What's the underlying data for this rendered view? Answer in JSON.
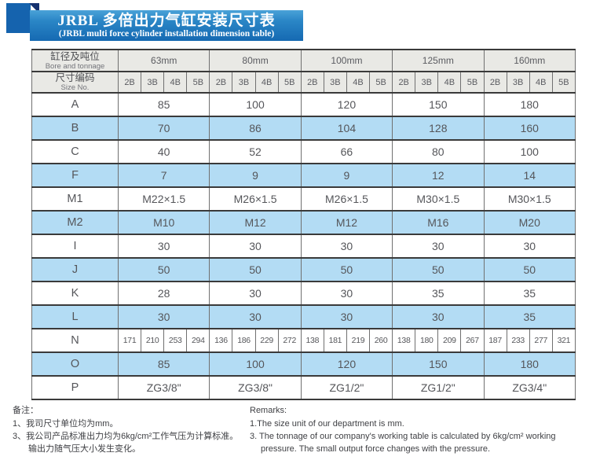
{
  "banner": {
    "title_zh": "JRBL 多倍出力气缸安装尺寸表",
    "title_en": "(JRBL multi force cylinder installation dimension table)"
  },
  "table": {
    "header": {
      "bore_zh": "缸径及吨位",
      "bore_en": "Bore and tonnage",
      "size_zh": "尺寸编码",
      "size_en": "Size No."
    },
    "groups": [
      "63mm",
      "80mm",
      "100mm",
      "125mm",
      "160mm"
    ],
    "subcols": [
      "2B",
      "3B",
      "4B",
      "5B"
    ],
    "rows": [
      {
        "label": "A",
        "values": [
          "85",
          "100",
          "120",
          "150",
          "180"
        ]
      },
      {
        "label": "B",
        "values": [
          "70",
          "86",
          "104",
          "128",
          "160"
        ]
      },
      {
        "label": "C",
        "values": [
          "40",
          "52",
          "66",
          "80",
          "100"
        ]
      },
      {
        "label": "F",
        "values": [
          "7",
          "9",
          "9",
          "12",
          "14"
        ]
      },
      {
        "label": "M1",
        "values": [
          "M22×1.5",
          "M26×1.5",
          "M26×1.5",
          "M30×1.5",
          "M30×1.5"
        ]
      },
      {
        "label": "M2",
        "values": [
          "M10",
          "M12",
          "M12",
          "M16",
          "M20"
        ]
      },
      {
        "label": "I",
        "values": [
          "30",
          "30",
          "30",
          "30",
          "30"
        ]
      },
      {
        "label": "J",
        "values": [
          "50",
          "50",
          "50",
          "50",
          "50"
        ]
      },
      {
        "label": "K",
        "values": [
          "28",
          "30",
          "30",
          "35",
          "35"
        ]
      },
      {
        "label": "L",
        "values": [
          "30",
          "30",
          "30",
          "30",
          "35"
        ]
      },
      {
        "label": "N",
        "values": [
          "171",
          "210",
          "253",
          "294",
          "136",
          "186",
          "229",
          "272",
          "138",
          "181",
          "219",
          "260",
          "138",
          "180",
          "209",
          "267",
          "187",
          "233",
          "277",
          "321"
        ]
      },
      {
        "label": "O",
        "values": [
          "85",
          "100",
          "120",
          "150",
          "180"
        ]
      },
      {
        "label": "P",
        "values": [
          "ZG3/8\"",
          "ZG3/8\"",
          "ZG1/2\"",
          "ZG1/2\"",
          "ZG3/4\""
        ]
      }
    ]
  },
  "notes_left": {
    "title": "备注：",
    "items": [
      "1、我司尺寸单位均为mm。",
      "3、我公司产品标准出力均为6kg/cm²工作气压为计算标准。输出力随气压大小发生变化。"
    ]
  },
  "notes_right": {
    "title": "Remarks:",
    "items": [
      "1.The size unit of our department is mm.",
      "3. The tonnage of our company's working table is calculated by 6kg/cm² working pressure. The small output force changes with the pressure."
    ]
  },
  "colors": {
    "banner_blue": "#1a78bd",
    "corner_blue": "#1563ae",
    "fold_navy": "#14316f",
    "row_blue": "#b3dcf4",
    "header_gray": "#e9e9e5"
  }
}
